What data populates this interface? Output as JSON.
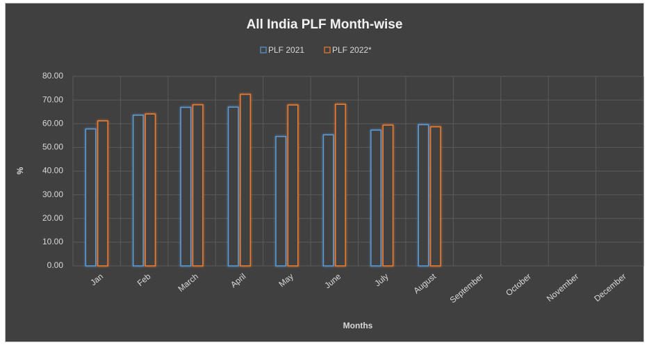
{
  "chart_data": {
    "type": "bar",
    "title": "All India PLF Month-wise",
    "categories": [
      "Jan",
      "Feb",
      "March",
      "April",
      "May",
      "June",
      "July",
      "August",
      "September",
      "October",
      "November",
      "December"
    ],
    "series": [
      {
        "name": "PLF 2021",
        "color": "#5b9bd5",
        "values": [
          57.8,
          63.6,
          66.9,
          67.0,
          54.6,
          55.3,
          57.3,
          59.6,
          null,
          null,
          null,
          null
        ]
      },
      {
        "name": "PLF 2022*",
        "color": "#ed7d31",
        "values": [
          61.2,
          64.1,
          68.0,
          72.4,
          67.9,
          68.2,
          59.4,
          58.7,
          null,
          null,
          null,
          null
        ]
      }
    ],
    "xlabel": "Months",
    "ylabel": "%",
    "ylim": [
      0,
      80
    ],
    "yticks": [
      {
        "value": 0,
        "label": "0.00"
      },
      {
        "value": 10,
        "label": "10.00"
      },
      {
        "value": 20,
        "label": "20.00"
      },
      {
        "value": 30,
        "label": "30.00"
      },
      {
        "value": 40,
        "label": "40.00"
      },
      {
        "value": 50,
        "label": "50.00"
      },
      {
        "value": 60,
        "label": "60.00"
      },
      {
        "value": 70,
        "label": "70.00"
      },
      {
        "value": 80,
        "label": "80.00"
      }
    ],
    "grid": true,
    "legend": "top"
  }
}
